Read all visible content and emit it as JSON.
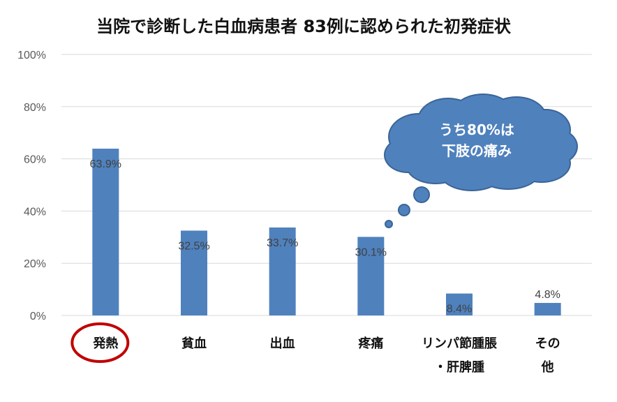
{
  "chart_data": {
    "type": "bar",
    "title": "当院で診断した白血病患者 83例に認められた初発症状",
    "categories": [
      "発熱",
      "貧血",
      "出血",
      "疼痛",
      "リンパ節腫脹・肝脾腫",
      "その他"
    ],
    "category_lines": [
      [
        "発熱"
      ],
      [
        "貧血"
      ],
      [
        "出血"
      ],
      [
        "疼痛"
      ],
      [
        "リンパ節腫脹",
        "・肝脾腫"
      ],
      [
        "その",
        "他"
      ]
    ],
    "values": [
      63.9,
      32.5,
      33.7,
      30.1,
      8.4,
      4.8
    ],
    "data_labels": [
      "63.9%",
      "32.5%",
      "33.7%",
      "30.1%",
      "8.4%",
      "4.8%"
    ],
    "ylim": [
      0,
      100
    ],
    "yticks": [
      0,
      20,
      40,
      60,
      80,
      100
    ],
    "ytick_labels": [
      "0%",
      "20%",
      "40%",
      "60%",
      "80%",
      "100%"
    ],
    "xlabel": "",
    "ylabel": "",
    "grid": true,
    "bar_color": "#4f81bd",
    "highlight_circle_category": "発熱",
    "highlight_color": "#c00000",
    "annotation": {
      "lines": [
        "うち80%は",
        "下肢の痛み"
      ],
      "points_to": "疼痛",
      "fill": "#4f81bd",
      "stroke": "#3a6496"
    }
  }
}
